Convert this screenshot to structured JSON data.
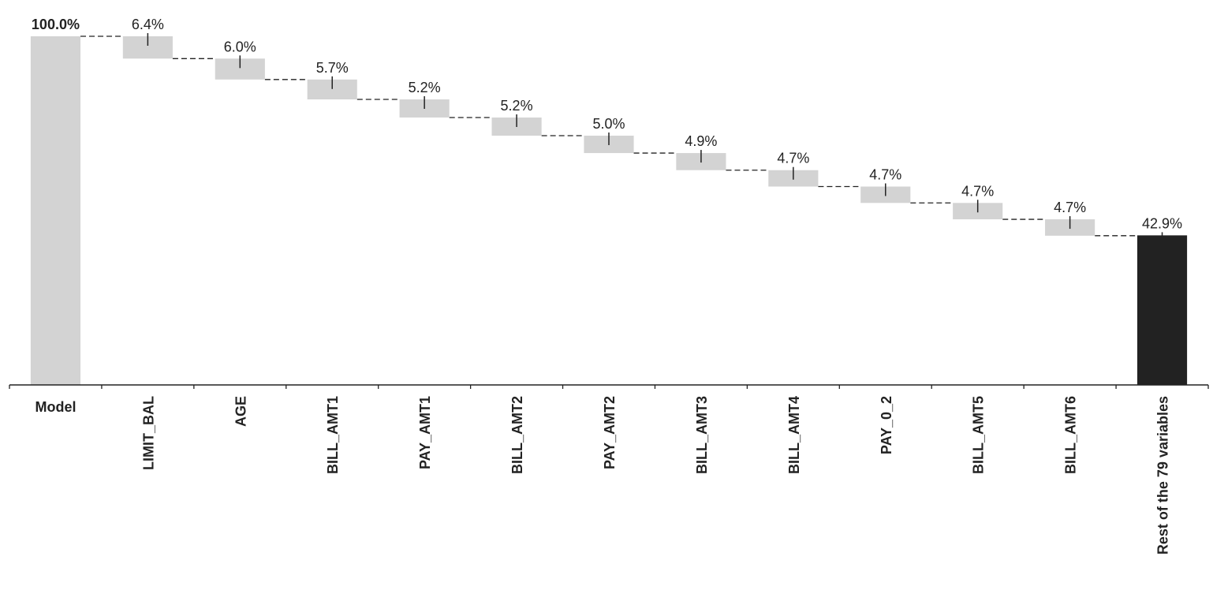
{
  "chart_data": {
    "type": "waterfall",
    "title": "",
    "xlabel": "",
    "ylabel": "",
    "ylim": [
      0,
      100
    ],
    "grid": false,
    "legend": "none",
    "model": {
      "label": "Model",
      "value": 100.0,
      "value_label": "100.0%",
      "color": "#d3d3d3"
    },
    "steps": [
      {
        "label": "LIMIT_BAL",
        "value": 6.4,
        "value_label": "6.4%"
      },
      {
        "label": "AGE",
        "value": 6.0,
        "value_label": "6.0%"
      },
      {
        "label": "BILL_AMT1",
        "value": 5.7,
        "value_label": "5.7%"
      },
      {
        "label": "PAY_AMT1",
        "value": 5.2,
        "value_label": "5.2%"
      },
      {
        "label": "BILL_AMT2",
        "value": 5.2,
        "value_label": "5.2%"
      },
      {
        "label": "PAY_AMT2",
        "value": 5.0,
        "value_label": "5.0%"
      },
      {
        "label": "BILL_AMT3",
        "value": 4.9,
        "value_label": "4.9%"
      },
      {
        "label": "BILL_AMT4",
        "value": 4.7,
        "value_label": "4.7%"
      },
      {
        "label": "PAY_0_2",
        "value": 4.7,
        "value_label": "4.7%"
      },
      {
        "label": "BILL_AMT5",
        "value": 4.7,
        "value_label": "4.7%"
      },
      {
        "label": "BILL_AMT6",
        "value": 4.7,
        "value_label": "4.7%"
      }
    ],
    "rest": {
      "label": "Rest of the 79 variables",
      "value": 42.9,
      "value_label": "42.9%",
      "color": "#222222"
    },
    "step_color": "#d3d3d3"
  }
}
